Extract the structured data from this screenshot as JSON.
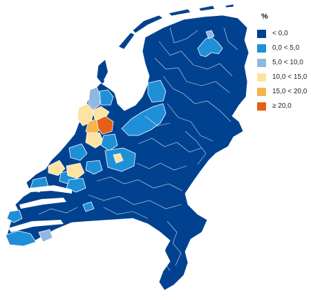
{
  "legend": {
    "title": "%",
    "classes": [
      {
        "label": "< 0,0",
        "color": "#00428f"
      },
      {
        "label": "0,0 < 5,0",
        "color": "#1e90d8"
      },
      {
        "label": "5,0 < 10,0",
        "color": "#8fb8e0"
      },
      {
        "label": "10,0 < 15,0",
        "color": "#fde3a1"
      },
      {
        "label": "15,0 < 20,0",
        "color": "#f6b54a"
      },
      {
        "label": "≥ 20,0",
        "color": "#e46014"
      }
    ]
  },
  "regions": {
    "base": "#00428f",
    "light_blue": "#1e90d8",
    "pale_blue": "#8fb8e0",
    "pale_yellow": "#fde3a1",
    "orange": "#f6b54a",
    "dark_orange": "#e46014"
  }
}
